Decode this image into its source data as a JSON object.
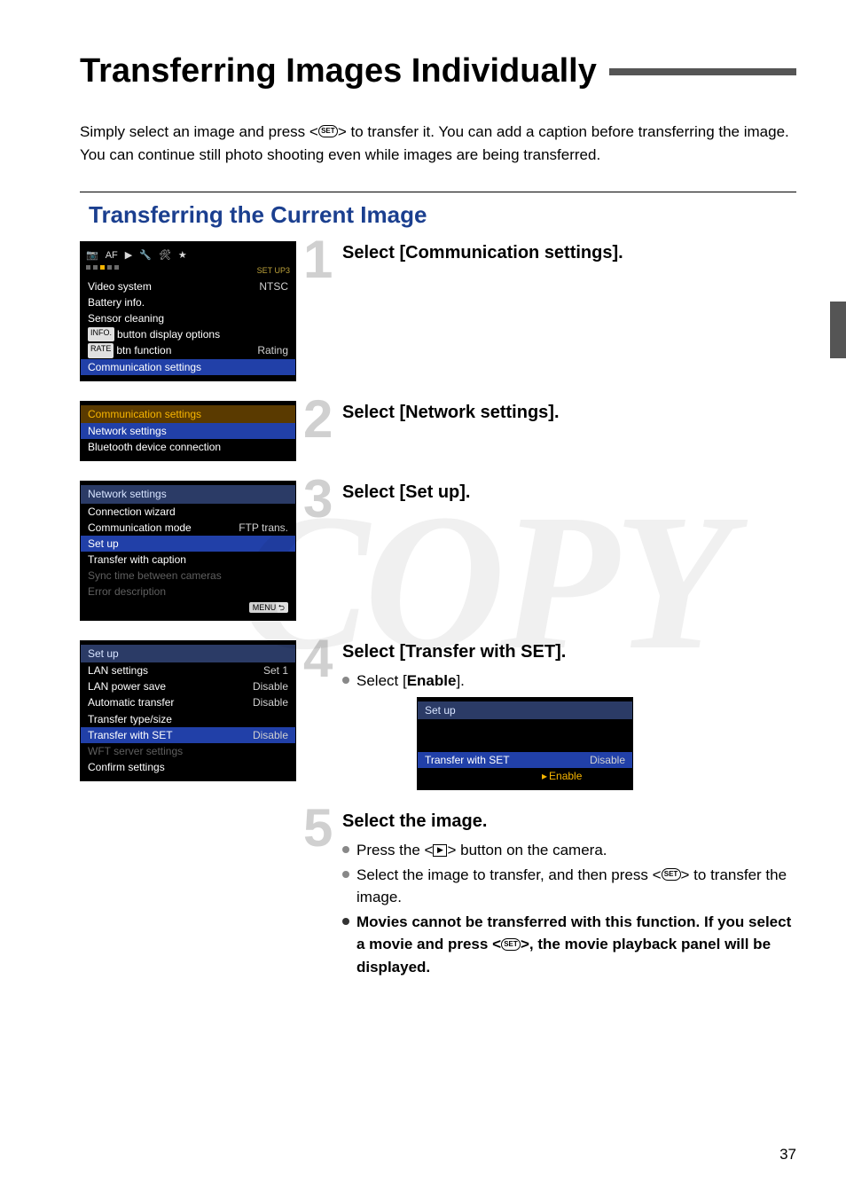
{
  "page": {
    "title": "Transferring Images Individually",
    "intro": "Simply select an image and press <{SET}> to transfer it. You can add a caption before transferring the image. You can continue still photo shooting even while images are being transferred.",
    "section_heading": "Transferring the Current Image",
    "watermark": "COPY",
    "page_number": "37"
  },
  "colors": {
    "num": "#d0d0d0",
    "heading": "#1b3f8f",
    "rule": "#555555",
    "hl_bg": "#2140a8",
    "hl_text": "#ffffff",
    "cam_bg": "#000000",
    "accent": "#f7b500"
  },
  "steps": [
    {
      "n": "1",
      "title": "Select [Communication settings]."
    },
    {
      "n": "2",
      "title": "Select [Network settings]."
    },
    {
      "n": "3",
      "title": "Select [Set up]."
    },
    {
      "n": "4",
      "title": "Select [Transfer with SET].",
      "bullets": [
        {
          "html": "Select [<b>Enable</b>]."
        }
      ]
    },
    {
      "n": "5",
      "title": "Select the image.",
      "bullets": [
        {
          "html": "Press the <<span class='icon-play' data-name='playback-icon' data-interactable='false'>▶</span>> button on the camera."
        },
        {
          "html": "Select the image to transfer, and then press <<span class='icon-set' data-name='set-icon' data-interactable='false'>SET</span>> to transfer the image."
        },
        {
          "bold": true,
          "html": "<b>Movies cannot be transferred with this function. If you select a movie and press &lt;<span class='icon-set' data-name='set-icon' data-interactable='false'>SET</span>&gt;, the movie playback panel will be displayed.</b>"
        }
      ]
    }
  ],
  "screenshots": {
    "s1": {
      "tabs": [
        "📷",
        "AF",
        "▶",
        "🔧",
        "🛠",
        "★"
      ],
      "setup_label": "SET UP3",
      "rows": [
        {
          "l": "Video system",
          "v": "NTSC"
        },
        {
          "l": "Battery info."
        },
        {
          "l": "Sensor cleaning"
        },
        {
          "l_html": "<span class='info-badge'>INFO.</span> button display options"
        },
        {
          "l_html": "<span class='rate-badge'>RATE</span> btn function",
          "v": "Rating"
        },
        {
          "l": "Communication settings",
          "hl": true
        }
      ]
    },
    "s2": {
      "header": "Communication settings",
      "rows": [
        {
          "l": "Network settings",
          "hl": true
        },
        {
          "l": "Bluetooth device connection"
        }
      ]
    },
    "s3": {
      "header": "Network settings",
      "rows": [
        {
          "l": "Connection wizard"
        },
        {
          "l": "Communication mode",
          "v": "FTP trans."
        },
        {
          "l": "Set up",
          "hl": true
        },
        {
          "l": "Transfer with caption"
        },
        {
          "l": "Sync time between cameras",
          "dim": true
        },
        {
          "l": "Error description",
          "dim": true
        }
      ],
      "back": "MENU ⮌"
    },
    "s4": {
      "header": "Set up",
      "rows": [
        {
          "l": "LAN settings",
          "v": "Set 1"
        },
        {
          "l": "LAN power save",
          "v": "Disable"
        },
        {
          "l": "Automatic transfer",
          "v": "Disable"
        },
        {
          "l": "Transfer type/size"
        },
        {
          "l": "Transfer with SET",
          "v": "Disable",
          "hl": true
        },
        {
          "l": "WFT server settings",
          "dim": true
        },
        {
          "l": "Confirm settings"
        }
      ]
    },
    "s4b": {
      "header": "Set up",
      "spacer_rows": 2,
      "item": "Transfer with SET",
      "options": [
        {
          "label": "Disable"
        },
        {
          "label": "Enable",
          "selected": true
        }
      ]
    }
  }
}
